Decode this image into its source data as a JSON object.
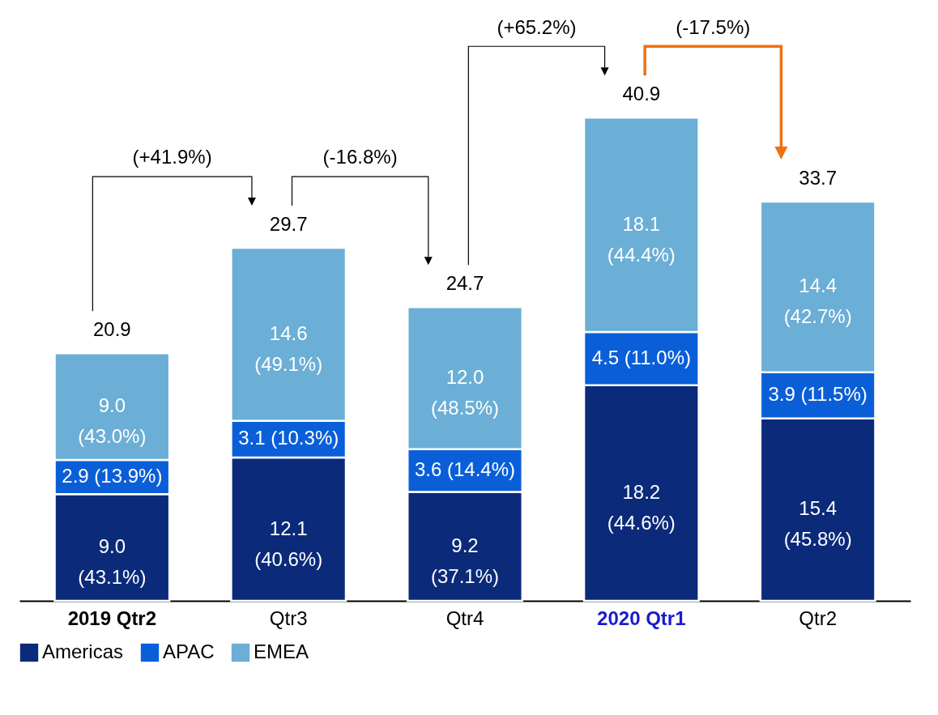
{
  "chart_data": {
    "type": "bar",
    "stacked": true,
    "legend": "bottom",
    "categories": [
      "2019 Qtr2",
      "Qtr3",
      "Qtr4",
      "2020 Qtr1",
      "Qtr2"
    ],
    "series": [
      {
        "name": "Americas",
        "color": "#0b2a7a",
        "values": [
          9.0,
          12.1,
          9.2,
          18.2,
          15.4
        ],
        "value_labels": [
          "9.0\n(43.1%)",
          "12.1\n(40.6%)",
          "9.2\n(37.1%)",
          "18.2\n(44.6%)",
          "15.4\n(45.8%)"
        ]
      },
      {
        "name": "APAC",
        "color": "#0a5fd8",
        "values": [
          2.9,
          3.1,
          3.6,
          4.5,
          3.9
        ],
        "value_labels": [
          "2.9 (13.9%)",
          "3.1 (10.3%)",
          "3.6 (14.4%)",
          "4.5 (11.0%)",
          "3.9 (11.5%)"
        ]
      },
      {
        "name": "EMEA",
        "color": "#6baed6",
        "values": [
          9.0,
          14.6,
          12.0,
          18.1,
          14.4
        ],
        "value_labels": [
          "9.0\n(43.0%)",
          "14.6\n(49.1%)",
          "12.0\n(48.5%)",
          "18.1\n(44.4%)",
          "14.4\n(42.7%)"
        ]
      }
    ],
    "totals": [
      "20.9",
      "29.7",
      "24.7",
      "40.9",
      "33.7"
    ],
    "annotations": [
      "(+41.9%)",
      "(-16.8%)",
      "(+65.2%)",
      "(-17.5%)"
    ]
  }
}
